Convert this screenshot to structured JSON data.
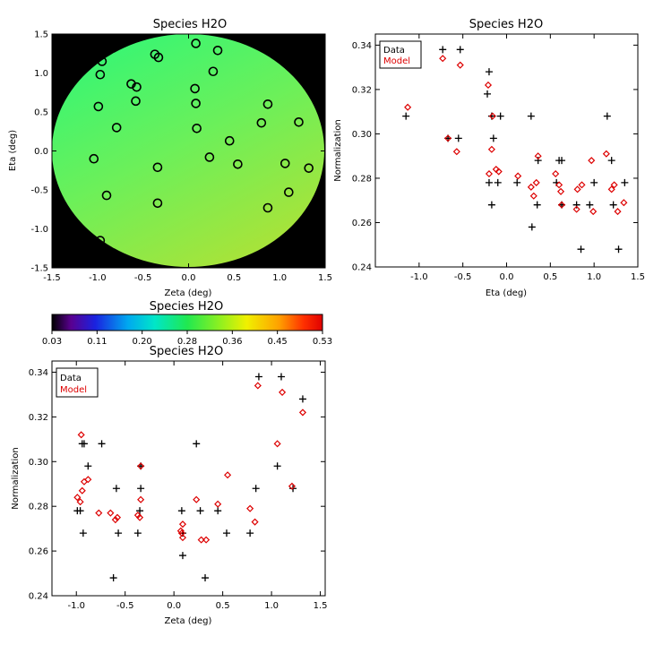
{
  "colors": {
    "data": "#000000",
    "model": "#dd0000",
    "background": "#000000"
  },
  "chart_data": [
    {
      "id": "map",
      "type": "heatmap",
      "title": "Species H2O",
      "xlabel": "Zeta (deg)",
      "ylabel": "Eta (deg)",
      "xlim": [
        -1.5,
        1.5
      ],
      "ylim": [
        -1.5,
        1.5
      ],
      "xticks": [
        "-1.5",
        "-1.0",
        "-0.5",
        "0.0",
        "0.5",
        "1.0",
        "1.5"
      ],
      "yticks": [
        "-1.5",
        "-1.0",
        "-0.5",
        "0.0",
        "0.5",
        "1.0",
        "1.5"
      ],
      "field_radius_deg": 1.5,
      "stations": [
        [
          -0.95,
          1.15
        ],
        [
          -0.97,
          0.98
        ],
        [
          -0.63,
          0.86
        ],
        [
          -0.57,
          0.82
        ],
        [
          -0.37,
          1.24
        ],
        [
          -0.33,
          1.2
        ],
        [
          0.08,
          1.38
        ],
        [
          0.32,
          1.29
        ],
        [
          0.27,
          1.02
        ],
        [
          -0.99,
          0.57
        ],
        [
          -0.58,
          0.64
        ],
        [
          0.07,
          0.8
        ],
        [
          0.08,
          0.61
        ],
        [
          0.87,
          0.6
        ],
        [
          -0.79,
          0.3
        ],
        [
          0.09,
          0.29
        ],
        [
          0.8,
          0.36
        ],
        [
          1.21,
          0.37
        ],
        [
          0.45,
          0.13
        ],
        [
          -1.04,
          -0.1
        ],
        [
          0.23,
          -0.08
        ],
        [
          0.54,
          -0.17
        ],
        [
          1.06,
          -0.16
        ],
        [
          1.32,
          -0.22
        ],
        [
          -0.34,
          -0.21
        ],
        [
          -0.9,
          -0.57
        ],
        [
          1.1,
          -0.53
        ],
        [
          -0.34,
          -0.67
        ],
        [
          0.87,
          -0.73
        ],
        [
          -0.97,
          -1.15
        ]
      ]
    },
    {
      "id": "colorbar",
      "type": "heatmap",
      "title": "Species H2O",
      "range": [
        0.03,
        0.53
      ],
      "ticks": [
        "0.03",
        "0.11",
        "0.20",
        "0.28",
        "0.36",
        "0.45",
        "0.53"
      ]
    },
    {
      "id": "eta",
      "type": "scatter",
      "title": "Species H2O",
      "xlabel": "Eta (deg)",
      "ylabel": "Normalization",
      "xlim": [
        -1.5,
        1.5
      ],
      "ylim": [
        0.24,
        0.345
      ],
      "xticks": [
        "-1.0",
        "-0.5",
        "0.0",
        "0.5",
        "1.0",
        "1.5"
      ],
      "yticks": [
        "0.24",
        "0.26",
        "0.28",
        "0.30",
        "0.32",
        "0.34"
      ],
      "legend": {
        "placement": "top-left",
        "entries": [
          "Data",
          "Model"
        ]
      },
      "series": [
        {
          "name": "Data",
          "marker": "plus",
          "points": [
            [
              -1.15,
              0.308
            ],
            [
              -0.73,
              0.338
            ],
            [
              -0.67,
              0.298
            ],
            [
              -0.55,
              0.298
            ],
            [
              -0.53,
              0.338
            ],
            [
              -0.2,
              0.328
            ],
            [
              -0.22,
              0.318
            ],
            [
              -0.17,
              0.308
            ],
            [
              -0.15,
              0.298
            ],
            [
              -0.2,
              0.278
            ],
            [
              -0.17,
              0.268
            ],
            [
              -0.1,
              0.278
            ],
            [
              -0.07,
              0.308
            ],
            [
              0.12,
              0.278
            ],
            [
              0.28,
              0.308
            ],
            [
              0.29,
              0.258
            ],
            [
              0.35,
              0.268
            ],
            [
              0.36,
              0.288
            ],
            [
              0.57,
              0.278
            ],
            [
              0.6,
              0.288
            ],
            [
              0.63,
              0.288
            ],
            [
              0.63,
              0.268
            ],
            [
              0.8,
              0.268
            ],
            [
              0.85,
              0.248
            ],
            [
              1.0,
              0.278
            ],
            [
              0.95,
              0.268
            ],
            [
              1.15,
              0.308
            ],
            [
              1.2,
              0.288
            ],
            [
              1.22,
              0.268
            ],
            [
              1.28,
              0.248
            ],
            [
              1.35,
              0.278
            ]
          ]
        },
        {
          "name": "Model",
          "marker": "diamond",
          "points": [
            [
              -1.13,
              0.312
            ],
            [
              -0.73,
              0.334
            ],
            [
              -0.67,
              0.298
            ],
            [
              -0.57,
              0.292
            ],
            [
              -0.53,
              0.331
            ],
            [
              -0.21,
              0.322
            ],
            [
              -0.16,
              0.308
            ],
            [
              -0.17,
              0.293
            ],
            [
              -0.2,
              0.282
            ],
            [
              -0.12,
              0.284
            ],
            [
              -0.09,
              0.283
            ],
            [
              0.13,
              0.281
            ],
            [
              0.28,
              0.276
            ],
            [
              0.31,
              0.272
            ],
            [
              0.34,
              0.278
            ],
            [
              0.36,
              0.29
            ],
            [
              0.56,
              0.282
            ],
            [
              0.6,
              0.277
            ],
            [
              0.62,
              0.274
            ],
            [
              0.63,
              0.268
            ],
            [
              0.8,
              0.266
            ],
            [
              0.81,
              0.275
            ],
            [
              0.86,
              0.277
            ],
            [
              0.97,
              0.288
            ],
            [
              0.99,
              0.265
            ],
            [
              1.14,
              0.291
            ],
            [
              1.2,
              0.275
            ],
            [
              1.23,
              0.277
            ],
            [
              1.27,
              0.265
            ],
            [
              1.34,
              0.269
            ]
          ]
        }
      ]
    },
    {
      "id": "zeta",
      "type": "scatter",
      "title": "Species H2O",
      "xlabel": "Zeta (deg)",
      "ylabel": "Normalization",
      "xlim": [
        -1.25,
        1.55
      ],
      "ylim": [
        0.24,
        0.345
      ],
      "xticks": [
        "-1.0",
        "-0.5",
        "0.0",
        "0.5",
        "1.0",
        "1.5"
      ],
      "yticks": [
        "0.24",
        "0.26",
        "0.28",
        "0.30",
        "0.32",
        "0.34"
      ],
      "legend": {
        "placement": "top-left",
        "entries": [
          "Data",
          "Model"
        ]
      },
      "series": [
        {
          "name": "Data",
          "marker": "plus",
          "points": [
            [
              -0.99,
              0.278
            ],
            [
              -0.94,
              0.308
            ],
            [
              -0.96,
              0.278
            ],
            [
              -0.92,
              0.308
            ],
            [
              -0.93,
              0.268
            ],
            [
              -0.88,
              0.298
            ],
            [
              -0.74,
              0.308
            ],
            [
              -0.62,
              0.248
            ],
            [
              -0.59,
              0.288
            ],
            [
              -0.57,
              0.268
            ],
            [
              -0.37,
              0.268
            ],
            [
              -0.34,
              0.298
            ],
            [
              -0.34,
              0.288
            ],
            [
              -0.35,
              0.278
            ],
            [
              0.08,
              0.278
            ],
            [
              0.09,
              0.268
            ],
            [
              0.09,
              0.258
            ],
            [
              0.23,
              0.308
            ],
            [
              0.27,
              0.278
            ],
            [
              0.32,
              0.248
            ],
            [
              0.45,
              0.278
            ],
            [
              0.54,
              0.268
            ],
            [
              0.78,
              0.268
            ],
            [
              0.84,
              0.288
            ],
            [
              0.87,
              0.338
            ],
            [
              1.06,
              0.298
            ],
            [
              1.1,
              0.338
            ],
            [
              1.22,
              0.288
            ],
            [
              1.32,
              0.328
            ]
          ]
        },
        {
          "name": "Model",
          "marker": "diamond",
          "points": [
            [
              -0.99,
              0.284
            ],
            [
              -0.96,
              0.282
            ],
            [
              -0.95,
              0.312
            ],
            [
              -0.94,
              0.287
            ],
            [
              -0.92,
              0.291
            ],
            [
              -0.88,
              0.292
            ],
            [
              -0.77,
              0.277
            ],
            [
              -0.65,
              0.277
            ],
            [
              -0.6,
              0.274
            ],
            [
              -0.58,
              0.275
            ],
            [
              -0.37,
              0.276
            ],
            [
              -0.35,
              0.275
            ],
            [
              -0.34,
              0.283
            ],
            [
              -0.34,
              0.298
            ],
            [
              0.07,
              0.269
            ],
            [
              0.08,
              0.268
            ],
            [
              0.09,
              0.266
            ],
            [
              0.09,
              0.272
            ],
            [
              0.23,
              0.283
            ],
            [
              0.28,
              0.265
            ],
            [
              0.33,
              0.265
            ],
            [
              0.45,
              0.281
            ],
            [
              0.55,
              0.294
            ],
            [
              0.78,
              0.279
            ],
            [
              0.83,
              0.273
            ],
            [
              0.86,
              0.334
            ],
            [
              1.06,
              0.308
            ],
            [
              1.11,
              0.331
            ],
            [
              1.21,
              0.289
            ],
            [
              1.32,
              0.322
            ]
          ]
        }
      ]
    }
  ]
}
